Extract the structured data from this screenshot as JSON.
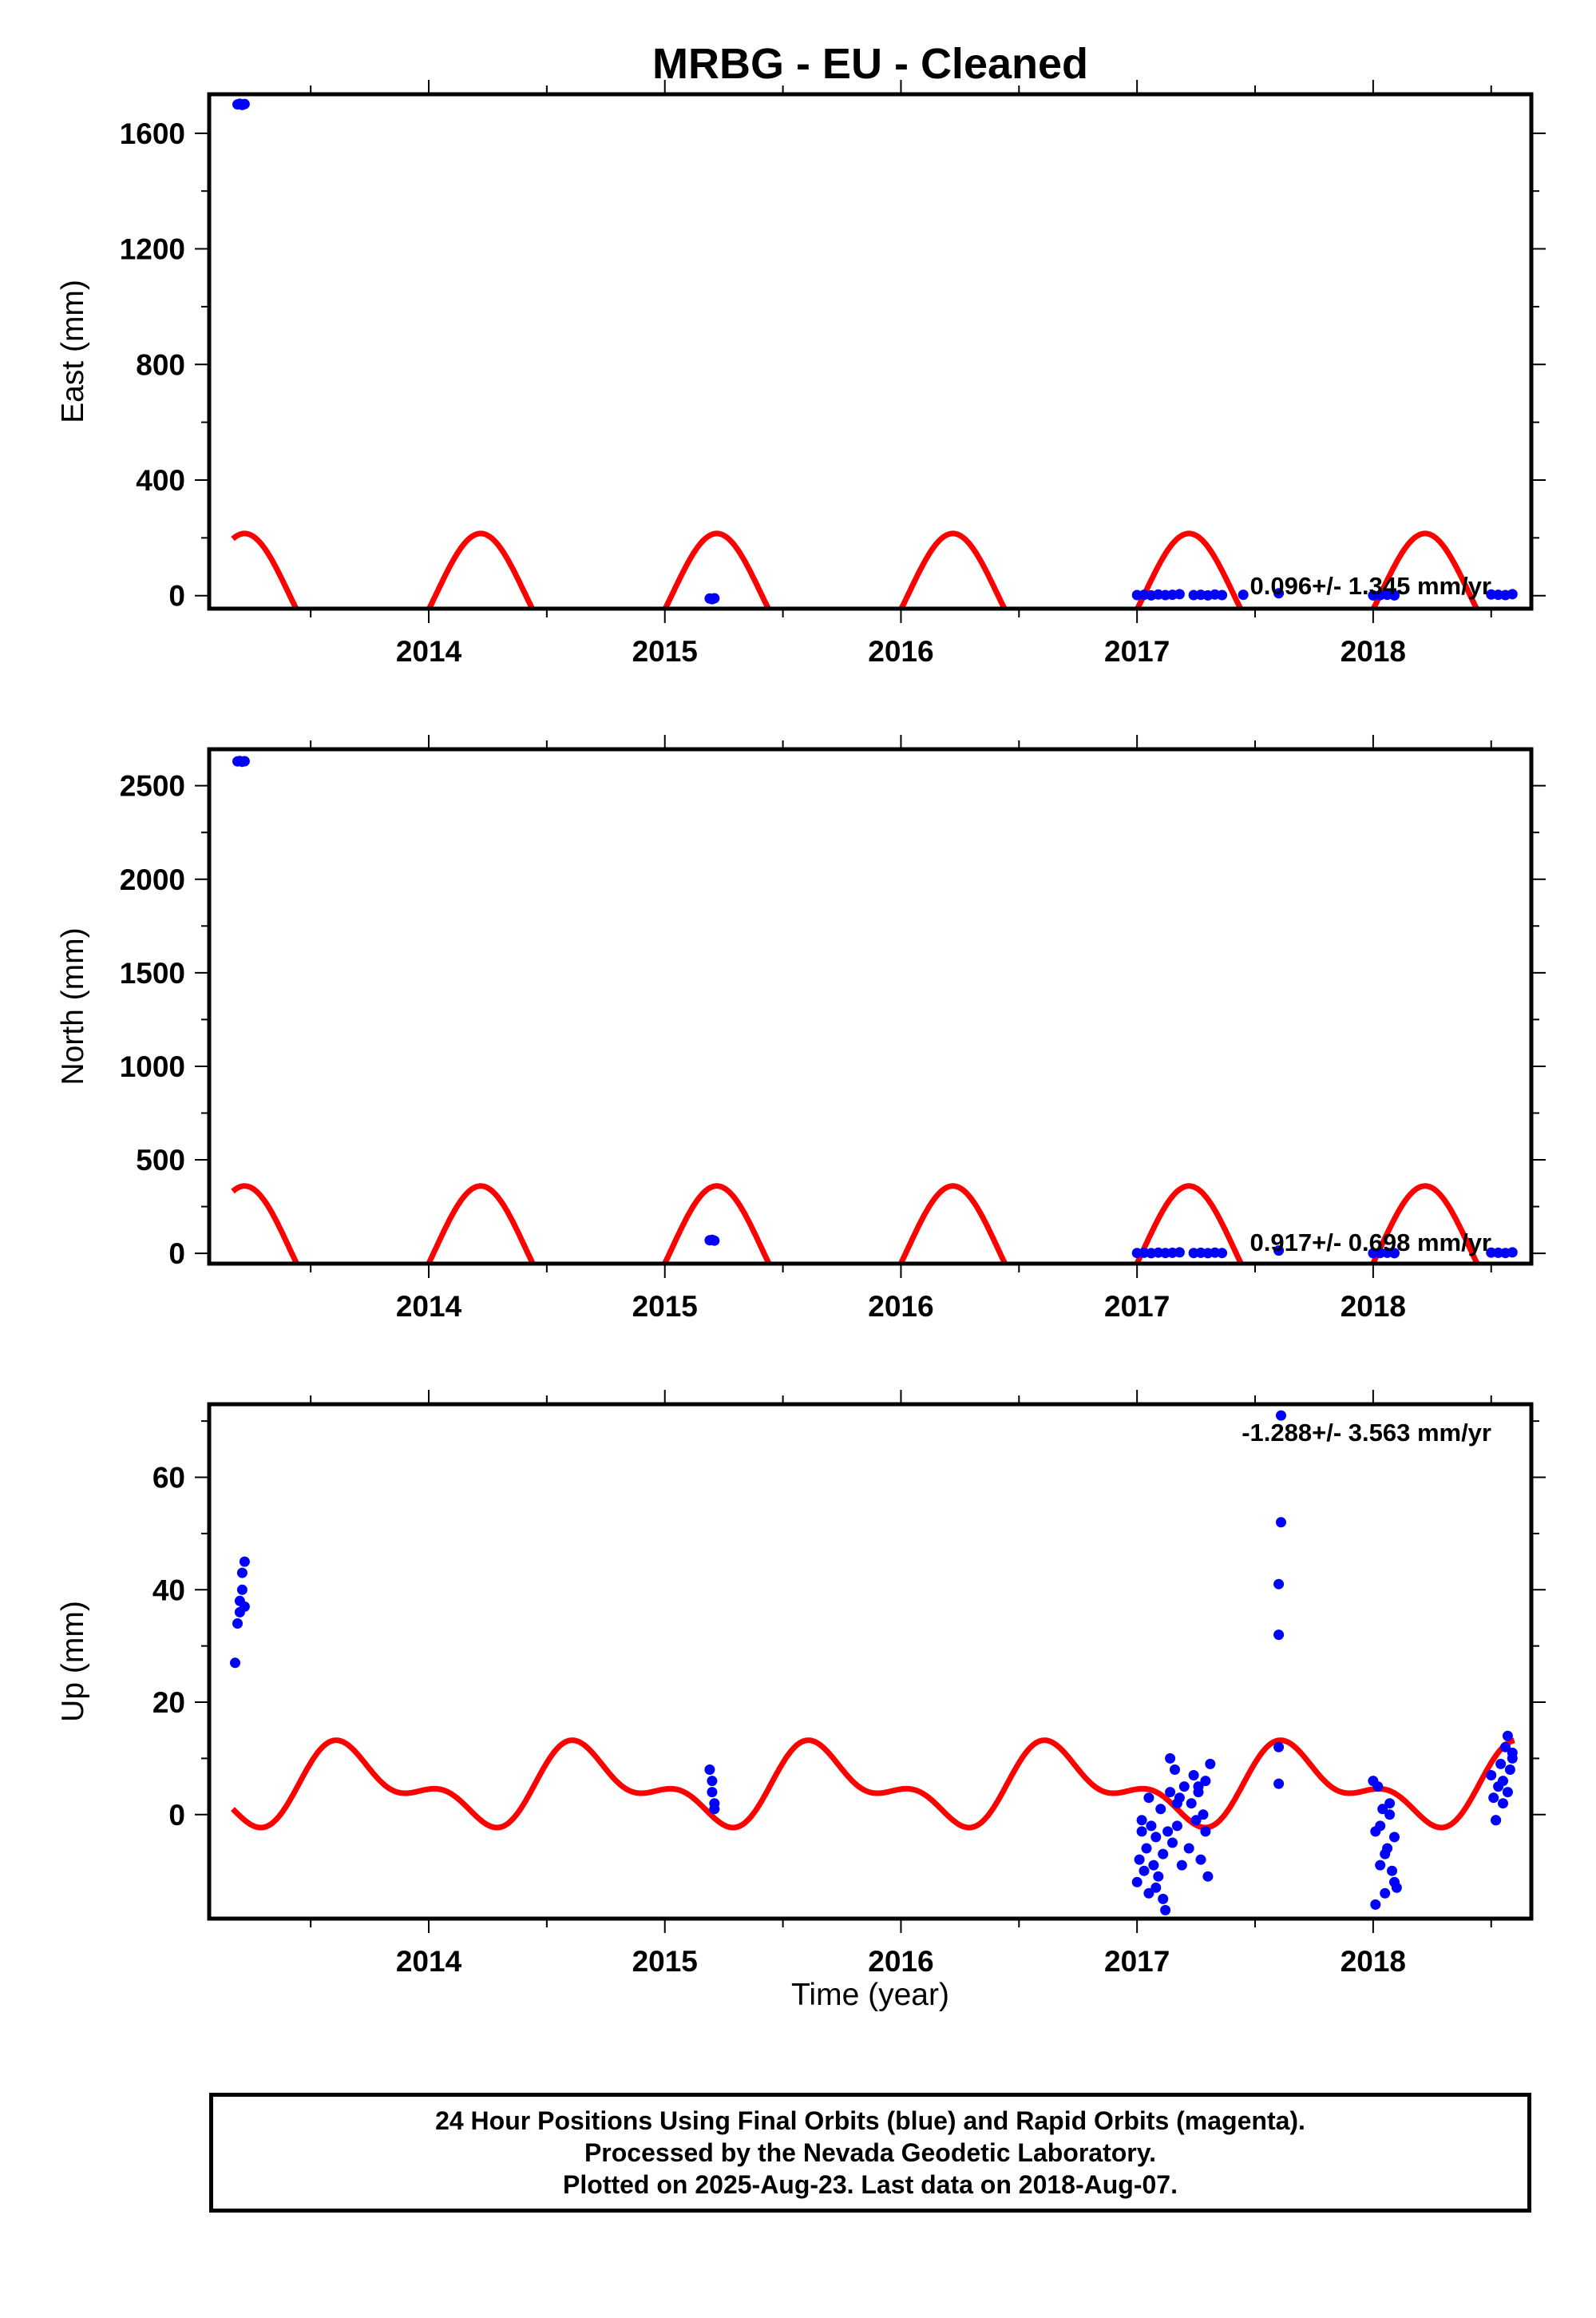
{
  "title": "MRBG  - EU - Cleaned",
  "xlabel": "Time (year)",
  "x_tick_labels": [
    "2014",
    "2015",
    "2016",
    "2017",
    "2018"
  ],
  "colors": {
    "observations": "#0000ff",
    "model": "#ff0000",
    "frame": "#000000"
  },
  "footer": {
    "line1": "24 Hour Positions Using Final Orbits (blue) and Rapid Orbits (magenta).",
    "line2": "Processed by the Nevada Geodetic Laboratory.",
    "line3": "Plotted on 2025-Aug-23. Last data on 2018-Aug-07."
  },
  "chart_data": [
    {
      "type": "scatter",
      "ylabel": "East (mm)",
      "rate_label": "0.096+/- 1.345 mm/yr",
      "xlim": [
        2013.07,
        2018.67
      ],
      "ylim": [
        -45,
        1735
      ],
      "yticks": [
        0,
        400,
        800,
        1200,
        1600
      ],
      "xticks": [
        2014,
        2015,
        2016,
        2017,
        2018
      ],
      "grid": false,
      "series": [
        {
          "kind": "points",
          "color": "#0000ff",
          "x": [
            2013.19,
            2013.2,
            2013.21,
            2013.22,
            2015.19,
            2015.2,
            2015.21,
            2017.0,
            2017.03,
            2017.06,
            2017.09,
            2017.12,
            2017.15,
            2017.18,
            2017.24,
            2017.27,
            2017.3,
            2017.33,
            2017.36,
            2017.45,
            2017.6,
            2018.0,
            2018.03,
            2018.06,
            2018.09,
            2018.5,
            2018.53,
            2018.56,
            2018.59
          ],
          "y": [
            1700,
            1702,
            1698,
            1701,
            -10,
            -12,
            -9,
            2,
            3,
            1,
            4,
            2,
            3,
            5,
            2,
            3,
            1,
            4,
            2,
            3,
            8,
            1,
            2,
            3,
            1,
            4,
            3,
            2,
            5
          ]
        },
        {
          "kind": "model",
          "color": "#ff0000",
          "equation": "y = -60 + 240*cos(2*pi*(t-0.22)) + 35*cos(4*pi*(t-0.22)), t = decimal year",
          "x_range": [
            2013.17,
            2018.6
          ]
        }
      ]
    },
    {
      "type": "scatter",
      "ylabel": "North (mm)",
      "rate_label": "0.917+/- 0.698 mm/yr",
      "xlim": [
        2013.07,
        2018.67
      ],
      "ylim": [
        -55,
        2695
      ],
      "yticks": [
        0,
        500,
        1000,
        1500,
        2000,
        2500
      ],
      "xticks": [
        2014,
        2015,
        2016,
        2017,
        2018
      ],
      "grid": false,
      "series": [
        {
          "kind": "points",
          "color": "#0000ff",
          "x": [
            2013.19,
            2013.2,
            2013.21,
            2013.22,
            2015.19,
            2015.2,
            2015.21,
            2017.0,
            2017.03,
            2017.06,
            2017.09,
            2017.12,
            2017.15,
            2017.18,
            2017.24,
            2017.27,
            2017.3,
            2017.33,
            2017.36,
            2017.6,
            2018.0,
            2018.03,
            2018.06,
            2018.09,
            2018.5,
            2018.53,
            2018.56,
            2018.59
          ],
          "y": [
            2630,
            2632,
            2628,
            2631,
            70,
            72,
            68,
            2,
            3,
            1,
            4,
            2,
            3,
            5,
            2,
            3,
            1,
            4,
            2,
            15,
            1,
            2,
            3,
            1,
            4,
            3,
            2,
            5
          ]
        },
        {
          "kind": "model",
          "color": "#ff0000",
          "equation": "y = -80 + 390*cos(2*pi*(t-0.22)) + 50*cos(4*pi*(t-0.22)), t = decimal year",
          "x_range": [
            2013.17,
            2018.6
          ]
        }
      ]
    },
    {
      "type": "scatter",
      "ylabel": "Up (mm)",
      "rate_label": "-1.288+/- 3.563 mm/yr",
      "xlim": [
        2013.07,
        2018.67
      ],
      "ylim": [
        -18.5,
        73
      ],
      "yticks": [
        0,
        20,
        40,
        60
      ],
      "xticks": [
        2014,
        2015,
        2016,
        2017,
        2018
      ],
      "grid": false,
      "series": [
        {
          "kind": "points",
          "color": "#0000ff",
          "x": [
            2013.18,
            2013.19,
            2013.2,
            2013.2,
            2013.21,
            2013.21,
            2013.22,
            2013.22,
            2015.19,
            2015.2,
            2015.2,
            2015.21,
            2015.21,
            2017.0,
            2017.01,
            2017.02,
            2017.03,
            2017.04,
            2017.05,
            2017.06,
            2017.07,
            2017.08,
            2017.09,
            2017.1,
            2017.11,
            2017.12,
            2017.13,
            2017.14,
            2017.15,
            2017.16,
            2017.17,
            2017.18,
            2017.19,
            2017.2,
            2017.22,
            2017.23,
            2017.24,
            2017.25,
            2017.26,
            2017.27,
            2017.28,
            2017.29,
            2017.3,
            2017.31,
            2017.02,
            2017.05,
            2017.08,
            2017.11,
            2017.14,
            2017.17,
            2017.26,
            2017.29,
            2017.6,
            2017.6,
            2017.6,
            2017.6,
            2017.61,
            2017.61,
            2018.0,
            2018.01,
            2018.02,
            2018.03,
            2018.04,
            2018.05,
            2018.06,
            2018.07,
            2018.08,
            2018.09,
            2018.1,
            2018.01,
            2018.03,
            2018.05,
            2018.07,
            2018.09,
            2018.5,
            2018.51,
            2018.52,
            2018.53,
            2018.54,
            2018.55,
            2018.56,
            2018.57,
            2018.58,
            2018.59,
            2018.52,
            2018.55,
            2018.57,
            2018.59
          ],
          "y": [
            27,
            34,
            36,
            38,
            40,
            43,
            45,
            37,
            8,
            6,
            4,
            2,
            1,
            -12,
            -8,
            -3,
            -10,
            -6,
            -14,
            -2,
            -9,
            -4,
            -11,
            1,
            -7,
            -17,
            -3,
            4,
            -5,
            8,
            -2,
            3,
            -9,
            5,
            -6,
            2,
            7,
            -1,
            4,
            -8,
            0,
            6,
            -11,
            9,
            -1,
            3,
            -13,
            -15,
            10,
            2,
            5,
            -3,
            5.5,
            12,
            32,
            41,
            52,
            71,
            6,
            -3,
            5,
            -9,
            1,
            -14,
            -6,
            2,
            -10,
            -4,
            -13,
            -16,
            -2,
            -7,
            0,
            -12,
            7,
            3,
            -1,
            5,
            9,
            2,
            12,
            4,
            8,
            10,
            -1,
            6,
            14,
            11
          ]
        },
        {
          "kind": "model",
          "color": "#ff0000",
          "equation": "y = 5 + 5.5*cos(2*pi*(t-0.68)) + 3.5*cos(4*pi*(t-0.58)), t = decimal year",
          "x_range": [
            2013.17,
            2018.6
          ]
        }
      ]
    }
  ]
}
